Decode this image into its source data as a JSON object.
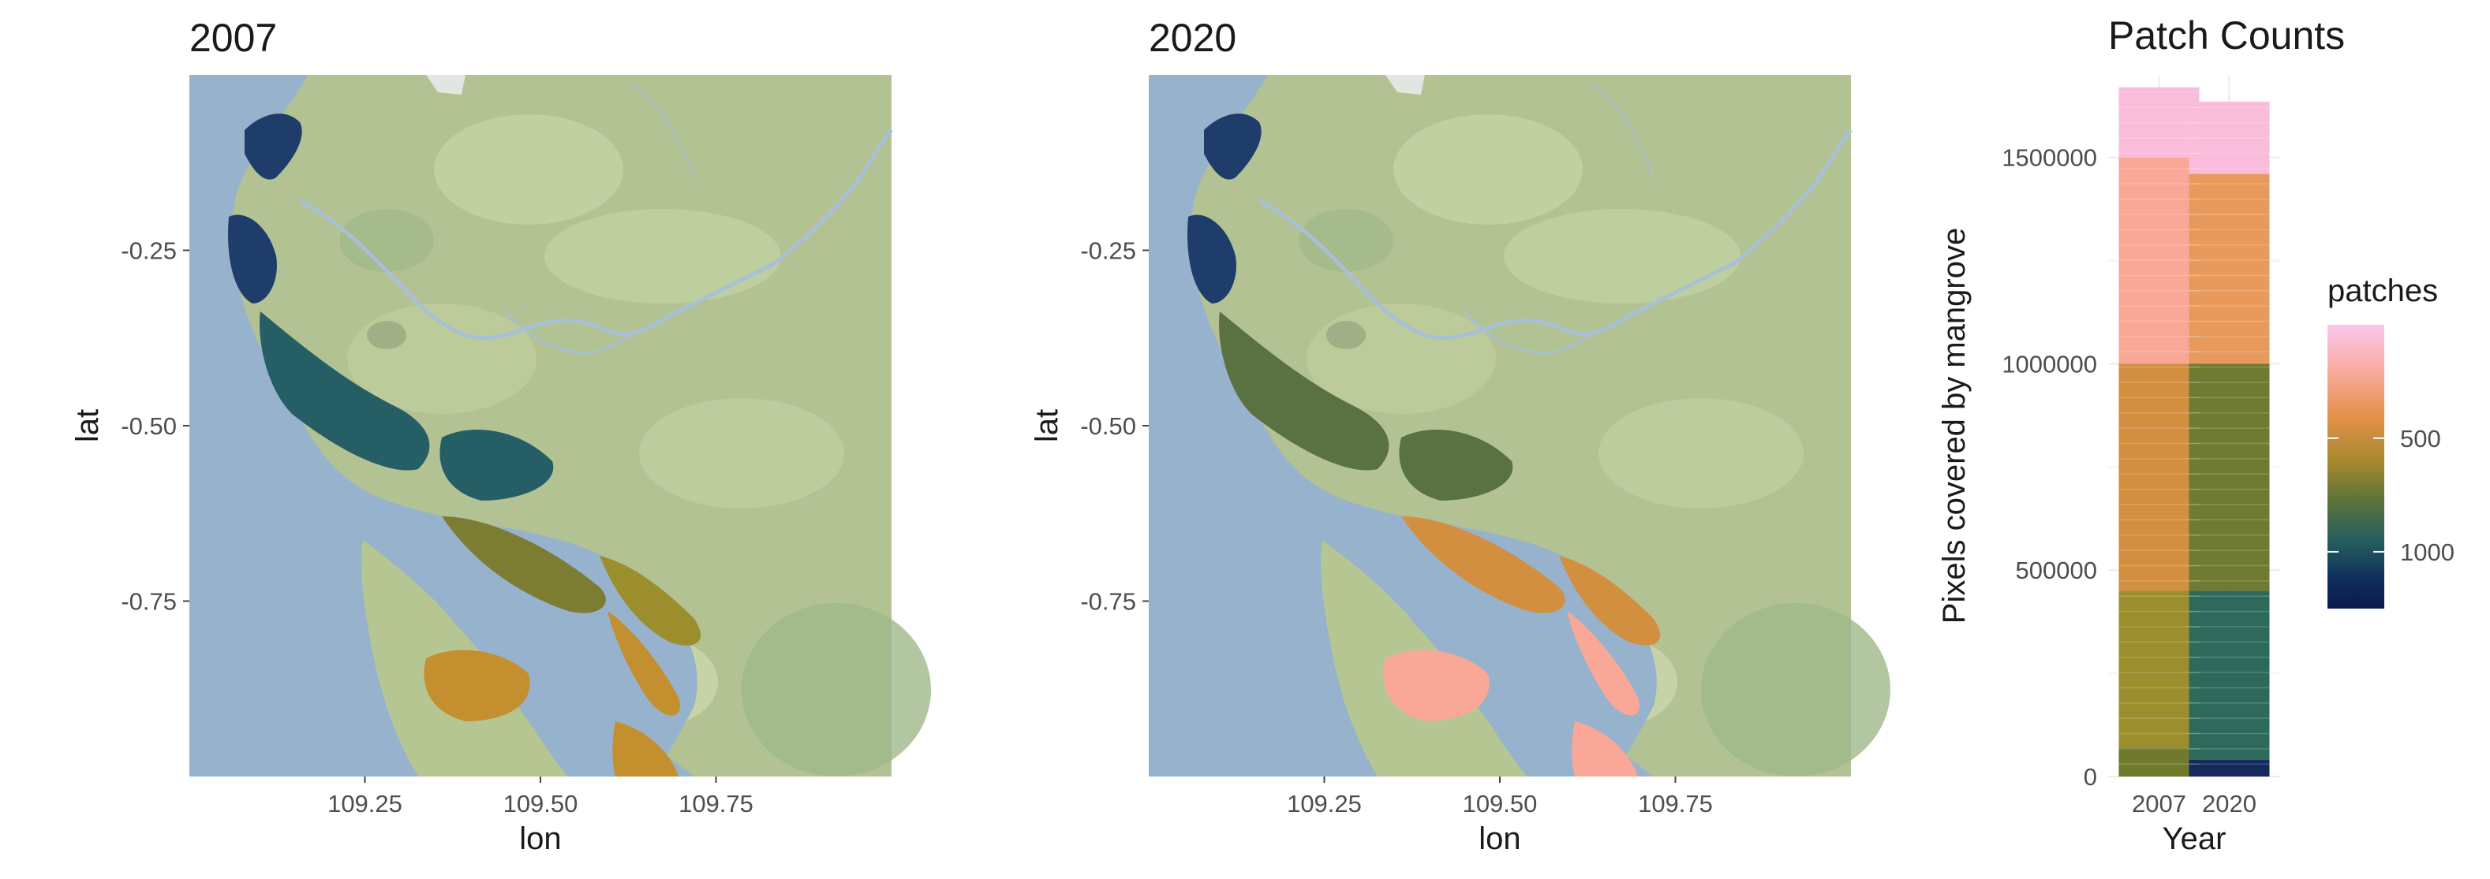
{
  "chart_data": [
    {
      "type": "map",
      "title": "2007",
      "xlabel": "lon",
      "ylabel": "lat",
      "xlim": [
        109.0,
        110.0
      ],
      "ylim": [
        -1.0,
        0.0
      ],
      "x_ticks": [
        109.25,
        109.5,
        109.75
      ],
      "x_tick_labels": [
        "109.25",
        "109.50",
        "109.75"
      ],
      "y_ticks": [
        -0.25,
        -0.5,
        -0.75
      ],
      "y_tick_labels": [
        "-0.25",
        "-0.50",
        "-0.75"
      ],
      "legend": "none"
    },
    {
      "type": "map",
      "title": "2020",
      "xlabel": "lon",
      "ylabel": "lat",
      "xlim": [
        109.0,
        110.0
      ],
      "ylim": [
        -1.0,
        0.0
      ],
      "x_ticks": [
        109.25,
        109.5,
        109.75
      ],
      "x_tick_labels": [
        "109.25",
        "109.50",
        "109.75"
      ],
      "y_ticks": [
        -0.25,
        -0.5,
        -0.75
      ],
      "y_tick_labels": [
        "-0.25",
        "-0.50",
        "-0.75"
      ],
      "legend": "none"
    },
    {
      "type": "bar",
      "stacked": true,
      "title": "Patch Counts",
      "xlabel": "Year",
      "ylabel": "Pixels covered by mangrove",
      "categories": [
        "2007",
        "2020"
      ],
      "totals": [
        1670000,
        1635000
      ],
      "ylim": [
        0,
        1700000
      ],
      "y_ticks": [
        0,
        500000,
        1000000,
        1500000
      ],
      "y_tick_labels": [
        "0",
        "500000",
        "1000000",
        "1500000"
      ],
      "grid": true,
      "legend_position": "right",
      "segments": [
        {
          "category": "2007",
          "from": 0,
          "to": 70000,
          "color": "#707a2c"
        },
        {
          "category": "2007",
          "from": 70000,
          "to": 450000,
          "color": "#9c8e2c"
        },
        {
          "category": "2007",
          "from": 450000,
          "to": 1000000,
          "color": "#d28f40"
        },
        {
          "category": "2007",
          "from": 1000000,
          "to": 1500000,
          "color": "#f9a897"
        },
        {
          "category": "2007",
          "from": 1500000,
          "to": 1670000,
          "color": "#f9bcda"
        },
        {
          "category": "2020",
          "from": 0,
          "to": 40000,
          "color": "#142a5c"
        },
        {
          "category": "2020",
          "from": 40000,
          "to": 450000,
          "color": "#2e6a5c"
        },
        {
          "category": "2020",
          "from": 450000,
          "to": 1000000,
          "color": "#6f7a32"
        },
        {
          "category": "2020",
          "from": 1000000,
          "to": 1460000,
          "color": "#e89a5c"
        },
        {
          "category": "2020",
          "from": 1460000,
          "to": 1635000,
          "color": "#f9bcda"
        }
      ],
      "colorbar": {
        "title": "patches",
        "ticks": [
          500,
          1000
        ],
        "tick_labels": [
          "500",
          "1000"
        ],
        "range": [
          1,
          1250
        ],
        "colors": [
          "#fbc6ee",
          "#f9aca0",
          "#e5914a",
          "#a6892e",
          "#5c7339",
          "#265f5f",
          "#0e2c5c",
          "#0b1a4e"
        ]
      }
    }
  ]
}
